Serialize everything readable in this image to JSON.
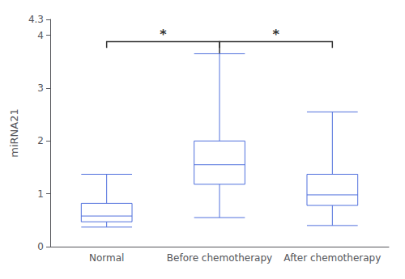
{
  "chart_data": {
    "type": "box",
    "categories": [
      "Normal",
      "Before chemotherapy",
      "After chemotherapy"
    ],
    "boxes": [
      {
        "whisker_low": 0.37,
        "q1": 0.47,
        "median": 0.58,
        "q3": 0.82,
        "whisker_high": 1.37
      },
      {
        "whisker_low": 0.55,
        "q1": 1.18,
        "median": 1.55,
        "q3": 2.0,
        "whisker_high": 3.65
      },
      {
        "whisker_low": 0.4,
        "q1": 0.78,
        "median": 0.98,
        "q3": 1.37,
        "whisker_high": 2.55
      }
    ],
    "ylabel": "miRNA21",
    "ylim": [
      0,
      4.3
    ],
    "yticks": [
      0,
      1,
      2,
      3,
      4
    ],
    "grid": false,
    "annotations": [
      {
        "from": "Normal",
        "to": "Before chemotherapy",
        "y": 3.88,
        "ends": [
          3.76,
          3.76
        ],
        "label": "*"
      },
      {
        "from": "Before chemotherapy",
        "to": "After chemotherapy",
        "y": 3.88,
        "ends": [
          3.65,
          3.76
        ],
        "label": "*"
      }
    ]
  }
}
